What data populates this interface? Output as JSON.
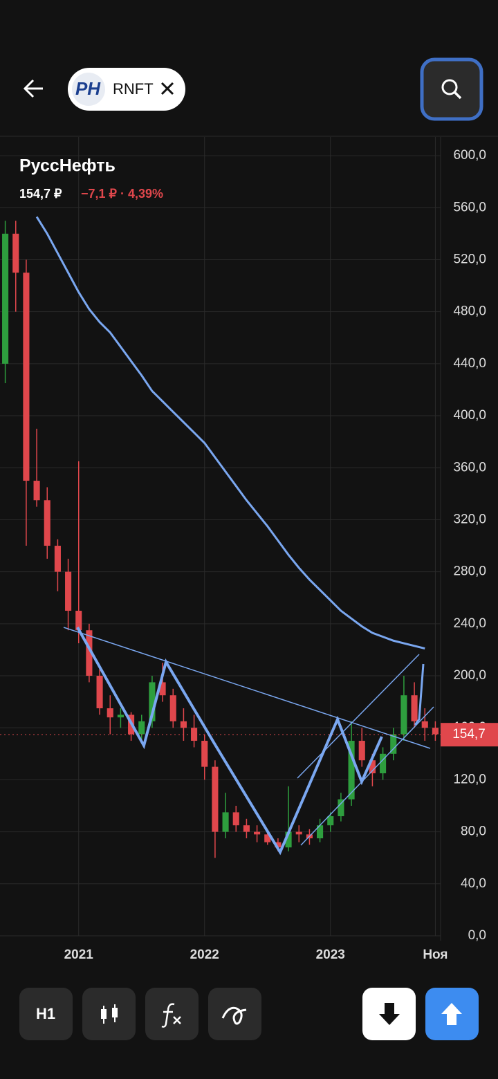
{
  "header": {
    "ticker": "RNFT"
  },
  "toolbar": {
    "interval": "H1"
  },
  "chart_data": {
    "type": "candlestick",
    "title": "РуссНефть",
    "price_text": "154,7 ₽",
    "change_text": "−7,1 ₽ · 4,39%",
    "categories": [
      null,
      null,
      null,
      null,
      null,
      null,
      null,
      "2021",
      null,
      null,
      null,
      null,
      null,
      null,
      null,
      null,
      null,
      null,
      null,
      "2022",
      null,
      null,
      null,
      null,
      null,
      null,
      null,
      null,
      null,
      null,
      null,
      "2023",
      null,
      null,
      null,
      null,
      null,
      null,
      null,
      null,
      null,
      "Ноя"
    ],
    "open": [
      440,
      540,
      510,
      350,
      335,
      300,
      280,
      250,
      235,
      200,
      175,
      168,
      170,
      155,
      165,
      195,
      185,
      165,
      160,
      150,
      130,
      80,
      95,
      85,
      80,
      78,
      72,
      68,
      80,
      78,
      75,
      85,
      92,
      105,
      150,
      135,
      125,
      140,
      155,
      185,
      165,
      160
    ],
    "high": [
      550,
      550,
      520,
      390,
      345,
      305,
      290,
      365,
      240,
      205,
      185,
      175,
      172,
      170,
      200,
      210,
      190,
      175,
      170,
      155,
      135,
      110,
      100,
      90,
      85,
      80,
      75,
      115,
      85,
      82,
      90,
      95,
      110,
      165,
      160,
      140,
      145,
      160,
      200,
      195,
      175,
      165
    ],
    "low": [
      425,
      480,
      300,
      330,
      290,
      265,
      235,
      225,
      195,
      170,
      155,
      160,
      150,
      148,
      160,
      180,
      160,
      150,
      145,
      120,
      60,
      75,
      80,
      75,
      72,
      70,
      65,
      65,
      72,
      70,
      72,
      80,
      88,
      100,
      130,
      115,
      120,
      135,
      150,
      160,
      150,
      150
    ],
    "close": [
      540,
      510,
      350,
      335,
      300,
      280,
      250,
      235,
      200,
      175,
      168,
      170,
      155,
      165,
      195,
      185,
      165,
      160,
      150,
      130,
      80,
      95,
      85,
      80,
      78,
      72,
      68,
      80,
      78,
      75,
      85,
      92,
      105,
      150,
      135,
      125,
      140,
      155,
      185,
      165,
      160,
      155
    ],
    "ma": {
      "color": "#7aa7f0",
      "values": [
        null,
        null,
        null,
        553,
        540,
        525,
        510,
        495,
        482,
        472,
        464,
        453,
        442,
        431,
        419,
        411,
        403,
        395,
        387,
        379,
        368,
        357,
        346,
        335,
        325,
        315,
        304,
        293,
        283,
        274,
        266,
        258,
        250,
        244,
        238,
        233,
        230,
        227,
        225,
        223,
        221,
        null
      ]
    },
    "up_color": "#2e9e3e",
    "down_color": "#e0474c",
    "current": {
      "value": 154.7,
      "label": "154,7"
    },
    "ylim": [
      0,
      614.4
    ],
    "yticks": [
      {
        "value": 0,
        "label": "0,0"
      },
      {
        "value": 40,
        "label": "40,0"
      },
      {
        "value": 80,
        "label": "80,0"
      },
      {
        "value": 120,
        "label": "120,0"
      },
      {
        "value": 160,
        "label": "160,0"
      },
      {
        "value": 200,
        "label": "200,0"
      },
      {
        "value": 240,
        "label": "240,0"
      },
      {
        "value": 280,
        "label": "280,0"
      },
      {
        "value": 320,
        "label": "320,0"
      },
      {
        "value": 360,
        "label": "360,0"
      },
      {
        "value": 400,
        "label": "400,0"
      },
      {
        "value": 440,
        "label": "440,0"
      },
      {
        "value": 480,
        "label": "480,0"
      },
      {
        "value": 520,
        "label": "520,0"
      },
      {
        "value": 560,
        "label": "560,0"
      },
      {
        "value": 600,
        "label": "600,0"
      }
    ],
    "grid": true
  }
}
